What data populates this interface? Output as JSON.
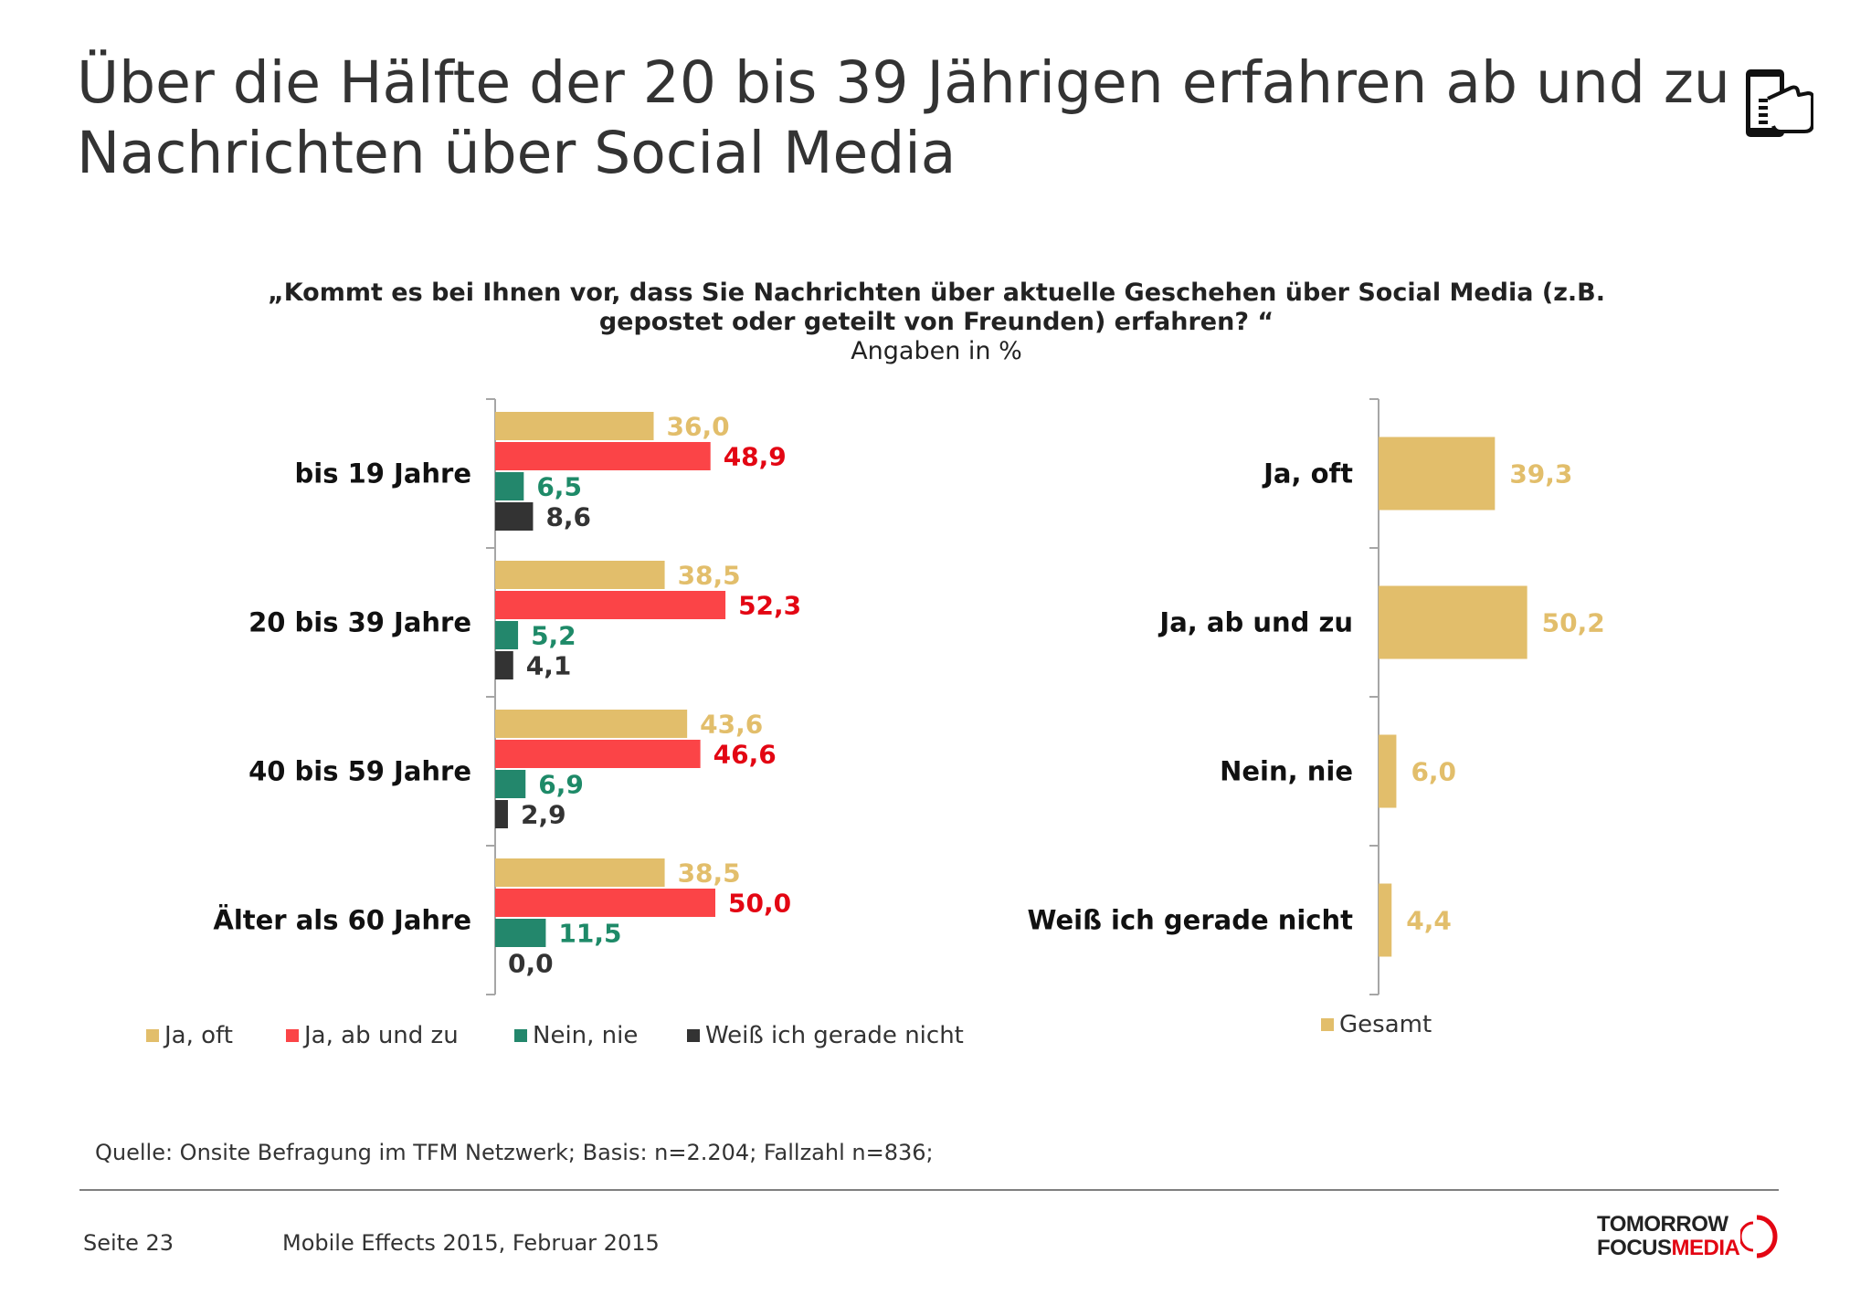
{
  "page": {
    "title_line1": "Über die Hälfte der 20 bis 39 Jährigen erfahren ab und zu",
    "title_line2": "Nachrichten über Social Media",
    "question_line1": "„Kommt es bei Ihnen vor, dass Sie Nachrichten über aktuelle Geschehen über Social Media (z.B.",
    "question_line2": "gepostet oder geteilt von Freunden) erfahren? “",
    "unit_note": "Angaben in %",
    "source": "Quelle: Onsite Befragung im TFM Netzwerk; Basis: n=2.204; Fallzahl n=836;",
    "page_number": "Seite 23",
    "document": "Mobile Effects 2015, Februar 2015",
    "brand_line1": "TOMORROW",
    "brand_line2_a": "FOCUS",
    "brand_line2_b": "MEDIA",
    "header_icon": "hand-holding-phone-icon"
  },
  "colors": {
    "ja_oft": "#e2be6b",
    "ja_ab_und_zu": "#fb4447",
    "nein_nie": "#23876c",
    "weiss_nicht": "#333333",
    "gesamt": "#e2be6b",
    "ja_oft_label": "#e2be6b",
    "ja_ab_und_zu_label": "#e30613",
    "nein_nie_label": "#1e8a68",
    "weiss_nicht_label": "#333333"
  },
  "chart_data": [
    {
      "type": "bar",
      "orientation": "horizontal",
      "categories": [
        "bis 19 Jahre",
        "20 bis 39 Jahre",
        "40 bis 59 Jahre",
        "Älter als 60 Jahre"
      ],
      "series": [
        {
          "name": "Ja, oft",
          "values": [
            36.0,
            38.5,
            43.6,
            38.5
          ],
          "labels": [
            "36,0",
            "38,5",
            "43,6",
            "38,5"
          ]
        },
        {
          "name": "Ja, ab und zu",
          "values": [
            48.9,
            52.3,
            46.6,
            50.0
          ],
          "labels": [
            "48,9",
            "52,3",
            "46,6",
            "50,0"
          ]
        },
        {
          "name": "Nein, nie",
          "values": [
            6.5,
            5.2,
            6.9,
            11.5
          ],
          "labels": [
            "6,5",
            "5,2",
            "6,9",
            "11,5"
          ]
        },
        {
          "name": "Weiß ich gerade nicht",
          "values": [
            8.6,
            4.1,
            2.9,
            0.0
          ],
          "labels": [
            "8,6",
            "4,1",
            "2,9",
            "0,0"
          ]
        }
      ],
      "xlim": [
        0,
        100
      ],
      "legend": "bottom"
    },
    {
      "type": "bar",
      "orientation": "horizontal",
      "categories": [
        "Ja, oft",
        "Ja, ab und zu",
        "Nein, nie",
        "Weiß ich gerade nicht"
      ],
      "series": [
        {
          "name": "Gesamt",
          "values": [
            39.3,
            50.2,
            6.0,
            4.4
          ],
          "labels": [
            "39,3",
            "50,2",
            "6,0",
            "4,4"
          ]
        }
      ],
      "xlim": [
        0,
        100
      ],
      "legend": "bottom"
    }
  ]
}
